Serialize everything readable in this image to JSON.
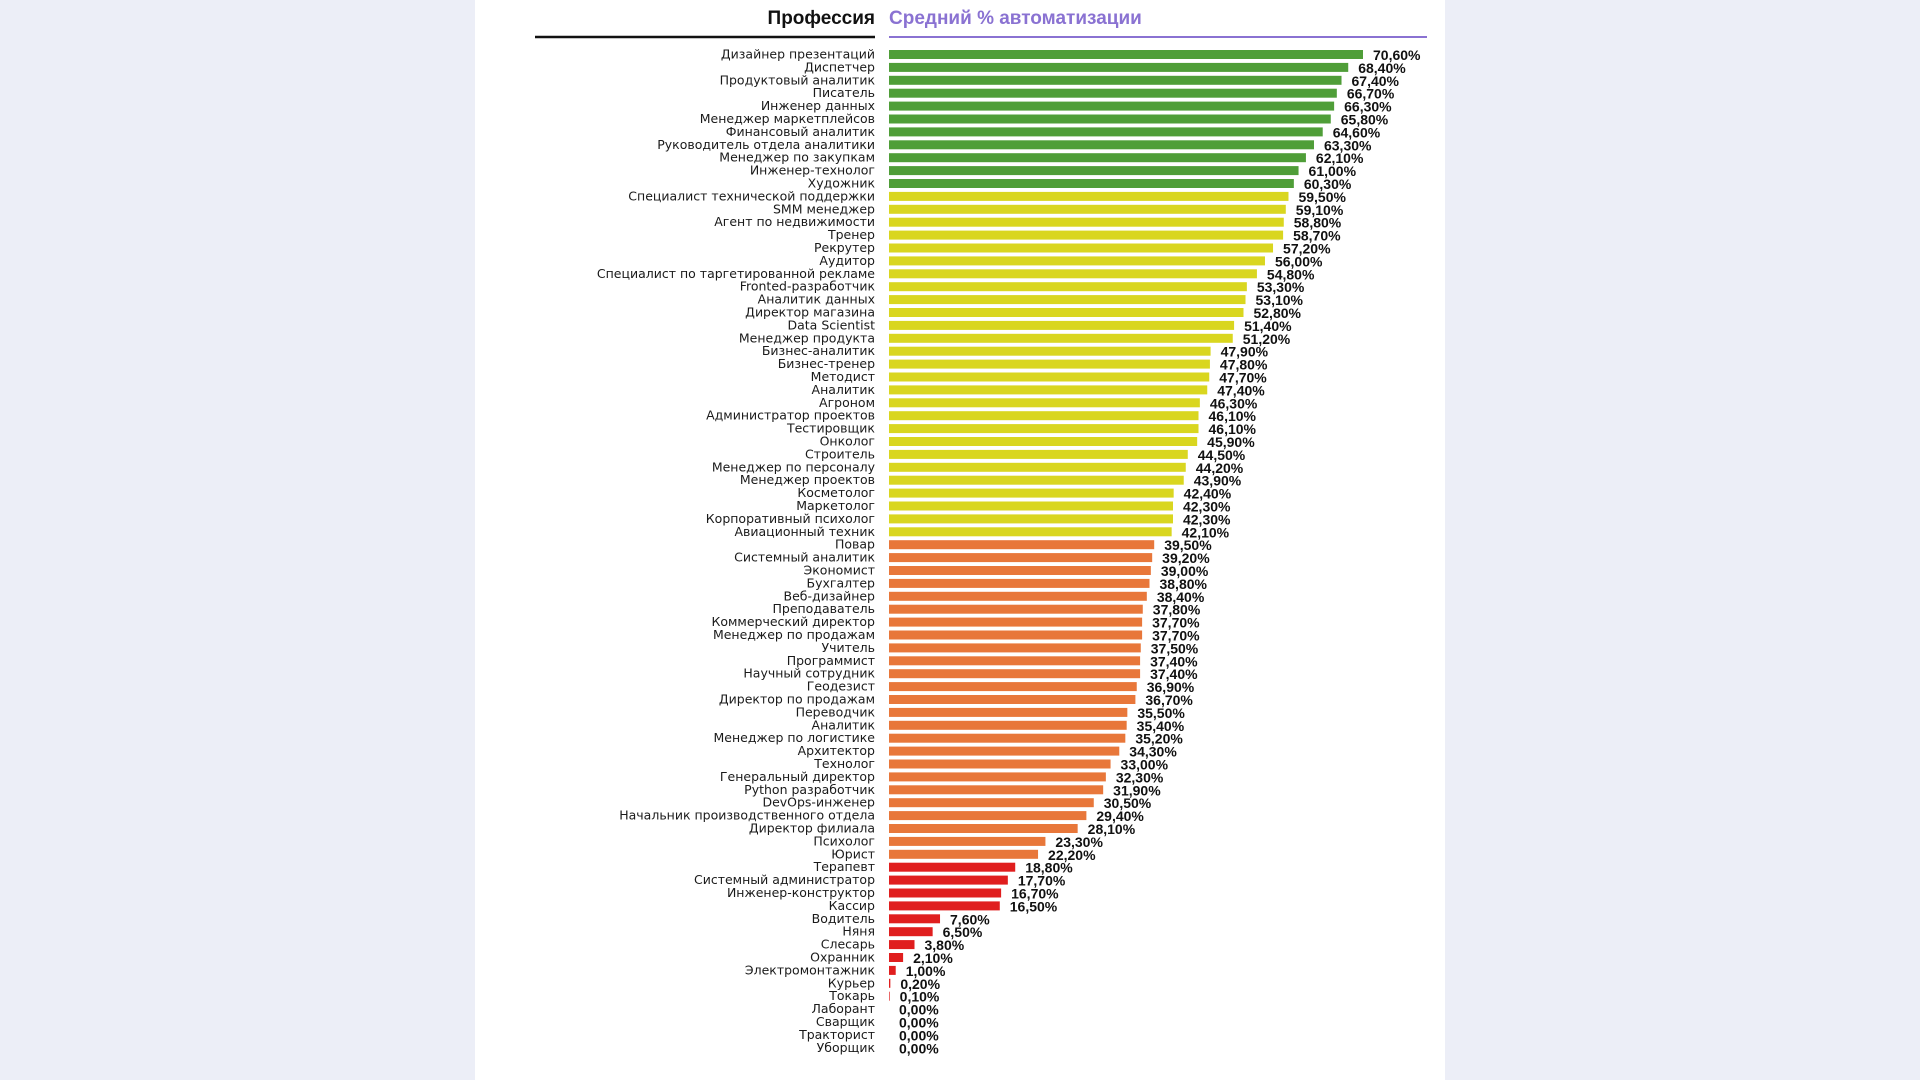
{
  "colors": {
    "background": "#eceef7",
    "card": "#ffffff",
    "header_accent": "#8a72d2",
    "green": "#4f9e38",
    "yellow": "#d9d61f",
    "orange": "#e8773a",
    "red": "#e01e1e"
  },
  "chart_data": {
    "type": "bar",
    "orientation": "horizontal",
    "category_header": "Профессия",
    "value_header": "Средний % автоматизации",
    "grid": false,
    "legend": "none",
    "xlim": [
      0,
      70.6
    ],
    "categories": [
      "Дизайнер презентаций",
      "Диспетчер",
      "Продуктовый аналитик",
      "Писатель",
      "Инженер данных",
      "Менеджер маркетплейсов",
      "Финансовый аналитик",
      "Руководитель отдела аналитики",
      "Менеджер по закупкам",
      "Инженер-технолог",
      "Художник",
      "Специалист технической поддержки",
      "SMM менеджер",
      "Агент по недвижимости",
      "Тренер",
      "Рекрутер",
      "Аудитор",
      "Специалист по таргетированной рекламе",
      "Fronted-разработчик",
      "Аналитик данных",
      "Директор магазина",
      "Data Scientist",
      "Менеджер продукта",
      "Бизнес-аналитик",
      "Бизнес-тренер",
      "Методист",
      "Аналитик",
      "Агроном",
      "Администратор проектов",
      "Тестировщик",
      "Онколог",
      "Строитель",
      "Менеджер по персоналу",
      "Менеджер проектов",
      "Косметолог",
      "Маркетолог",
      "Корпоративный психолог",
      "Авиационный техник",
      "Повар",
      "Системный аналитик",
      "Экономист",
      "Бухгалтер",
      "Веб-дизайнер",
      "Преподаватель",
      "Коммерческий директор",
      "Менеджер по продажам",
      "Учитель",
      "Программист",
      "Научный сотрудник",
      "Геодезист",
      "Директор по продажам",
      "Переводчик",
      "Аналитик",
      "Менеджер по логистике",
      "Архитектор",
      "Технолог",
      "Генеральный директор",
      "Python разработчик",
      "DevOps-инженер",
      "Начальник производственного отдела",
      "Директор филиала",
      "Психолог",
      "Юрист",
      "Терапевт",
      "Системный администратор",
      "Инженер-конструктор",
      "Кассир",
      "Водитель",
      "Няня",
      "Слесарь",
      "Охранник",
      "Электромонтажник",
      "Курьер",
      "Токарь",
      "Лаборант",
      "Сварщик",
      "Тракторист",
      "Уборщик"
    ],
    "values": [
      70.6,
      68.4,
      67.4,
      66.7,
      66.3,
      65.8,
      64.6,
      63.3,
      62.1,
      61.0,
      60.3,
      59.5,
      59.1,
      58.8,
      58.7,
      57.2,
      56.0,
      54.8,
      53.3,
      53.1,
      52.8,
      51.4,
      51.2,
      47.9,
      47.8,
      47.7,
      47.4,
      46.3,
      46.1,
      46.1,
      45.9,
      44.5,
      44.2,
      43.9,
      42.4,
      42.3,
      42.3,
      42.1,
      39.5,
      39.2,
      39.0,
      38.8,
      38.4,
      37.8,
      37.7,
      37.7,
      37.5,
      37.4,
      37.4,
      36.9,
      36.7,
      35.5,
      35.4,
      35.2,
      34.3,
      33.0,
      32.3,
      31.9,
      30.5,
      29.4,
      28.1,
      23.3,
      22.2,
      18.8,
      17.7,
      16.7,
      16.5,
      7.6,
      6.5,
      3.8,
      2.1,
      1.0,
      0.2,
      0.1,
      0.0,
      0.0,
      0.0,
      0.0
    ],
    "value_labels": [
      "70,60%",
      "68,40%",
      "67,40%",
      "66,70%",
      "66,30%",
      "65,80%",
      "64,60%",
      "63,30%",
      "62,10%",
      "61,00%",
      "60,30%",
      "59,50%",
      "59,10%",
      "58,80%",
      "58,70%",
      "57,20%",
      "56,00%",
      "54,80%",
      "53,30%",
      "53,10%",
      "52,80%",
      "51,40%",
      "51,20%",
      "47,90%",
      "47,80%",
      "47,70%",
      "47,40%",
      "46,30%",
      "46,10%",
      "46,10%",
      "45,90%",
      "44,50%",
      "44,20%",
      "43,90%",
      "42,40%",
      "42,30%",
      "42,30%",
      "42,10%",
      "39,50%",
      "39,20%",
      "39,00%",
      "38,80%",
      "38,40%",
      "37,80%",
      "37,70%",
      "37,70%",
      "37,50%",
      "37,40%",
      "37,40%",
      "36,90%",
      "36,70%",
      "35,50%",
      "35,40%",
      "35,20%",
      "34,30%",
      "33,00%",
      "32,30%",
      "31,90%",
      "30,50%",
      "29,40%",
      "28,10%",
      "23,30%",
      "22,20%",
      "18,80%",
      "17,70%",
      "16,70%",
      "16,50%",
      "7,60%",
      "6,50%",
      "3,80%",
      "2,10%",
      "1,00%",
      "0,20%",
      "0,10%",
      "0,00%",
      "0,00%",
      "0,00%",
      "0,00%"
    ],
    "color_groups": [
      {
        "color": "green",
        "count": 11
      },
      {
        "color": "yellow",
        "count": 27
      },
      {
        "color": "orange",
        "count": 25
      },
      {
        "color": "red",
        "count": 15
      }
    ]
  }
}
